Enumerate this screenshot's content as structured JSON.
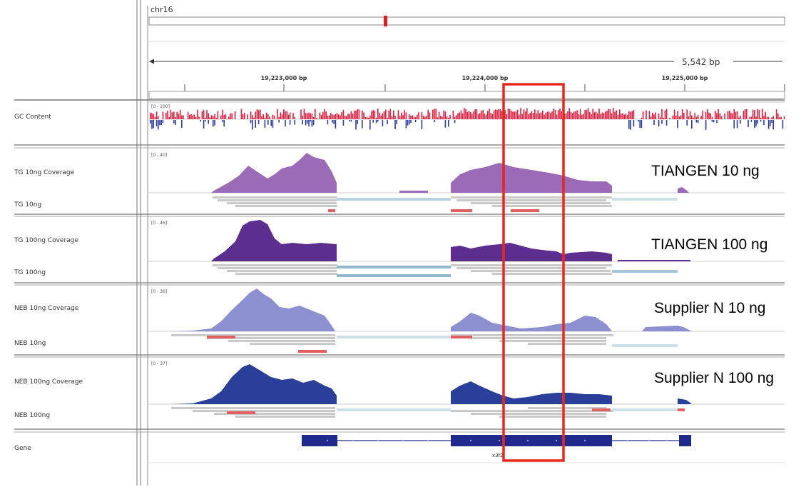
{
  "header": {
    "chromosome": "chr16",
    "span": "5,542 bp",
    "ticks": [
      "19,223,000 bp",
      "19,224,000 bp",
      "19,225,000 bp"
    ]
  },
  "tracks": {
    "gc": {
      "name": "GC Content",
      "range": "[0 - 100]"
    },
    "tg10_cov": {
      "name": "TG 10ng Coverage",
      "range": "[0 - 40]"
    },
    "tg10": {
      "name": "TG 10ng"
    },
    "tg100_cov": {
      "name": "TG 100ng Coverage",
      "range": "[0 - 46]"
    },
    "tg100": {
      "name": "TG 100ng"
    },
    "neb10_cov": {
      "name": "NEB 10ng Coverage",
      "range": "[0 - 36]"
    },
    "neb10": {
      "name": "NEB 10ng"
    },
    "neb100_cov": {
      "name": "NEB 100ng Coverage",
      "range": "[0 - 37]"
    },
    "neb100": {
      "name": "NEB 100ng"
    },
    "gene": {
      "name": "Gene",
      "label": "x3f2"
    }
  },
  "overlays": {
    "tg10": "TIANGEN 10 ng",
    "tg100": "TIANGEN 100 ng",
    "n10": "Supplier N 10 ng",
    "n100": "Supplier N 100 ng"
  },
  "colors": {
    "highlight": "#e8281e",
    "tg10": "#9b6bb8",
    "tg100": "#5b2e8f",
    "neb10": "#8c8fd0",
    "neb100": "#2a3f9a",
    "gc_pos": "#e31c3d",
    "gc_neg": "#2b3aa0",
    "gene": "#1f2a8c"
  }
}
